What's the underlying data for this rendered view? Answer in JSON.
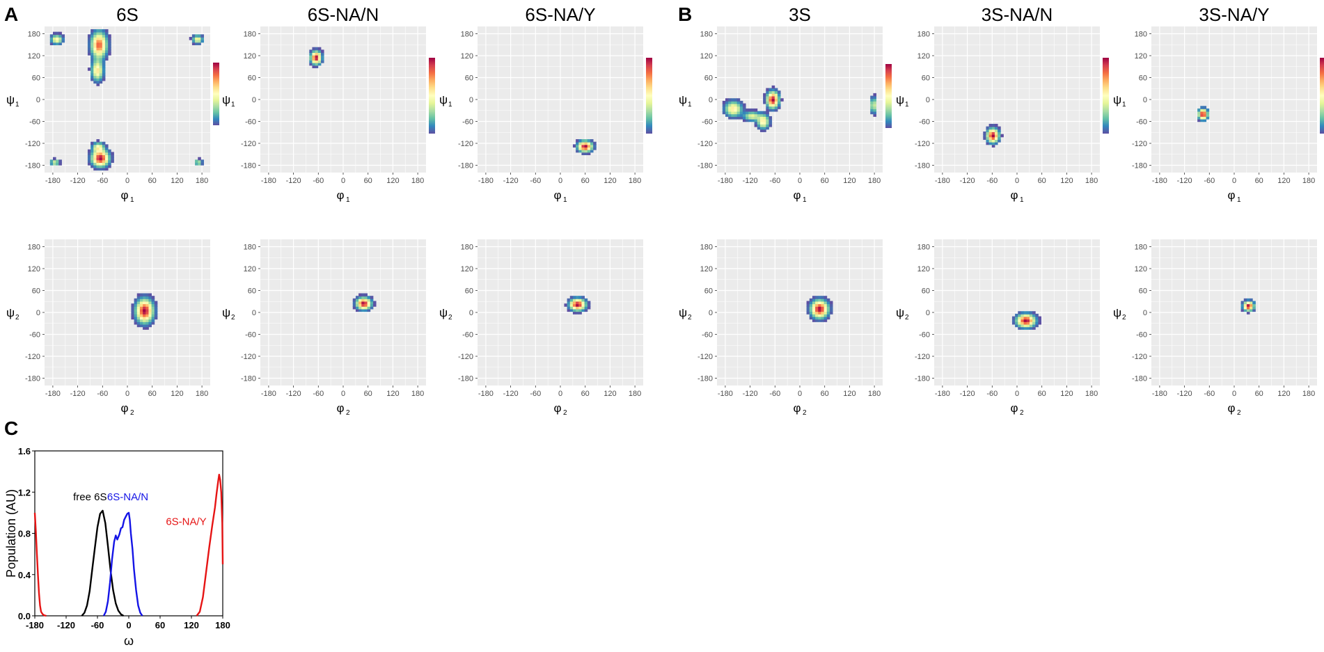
{
  "panel_labels": [
    "A",
    "B",
    "C"
  ],
  "colors": {
    "panel_bg": "#ebebeb",
    "grid": "#ffffff",
    "free6S": "#000000",
    "NA_N": "#1414e6",
    "NA_Y": "#e61414"
  },
  "colormap": [
    "#5e4fa2",
    "#3288bd",
    "#66c2a5",
    "#abdda4",
    "#e6f598",
    "#ffffbf",
    "#fee08b",
    "#fdae61",
    "#f46d43",
    "#d53e4f",
    "#9e0142"
  ],
  "chart_data": [
    {
      "type": "heatmap",
      "title": "6S",
      "xlabel": "φ",
      "xsub": "1",
      "ylabel": "ψ",
      "ysub": "1",
      "xlim": [
        -200,
        200
      ],
      "ylim": [
        -200,
        200
      ],
      "ticks": [
        "-180",
        "-120",
        "-60",
        "0",
        "60",
        "120",
        "180"
      ],
      "colorbar": true,
      "clusters": [
        {
          "x": -68,
          "y": 150,
          "sx": 12,
          "sy": 22,
          "peak": 0.85
        },
        {
          "x": -72,
          "y": 80,
          "sx": 9,
          "sy": 18,
          "peak": 0.6
        },
        {
          "x": -170,
          "y": 165,
          "sx": 9,
          "sy": 8,
          "peak": 0.55
        },
        {
          "x": 170,
          "y": 165,
          "sx": 8,
          "sy": 7,
          "peak": 0.5
        },
        {
          "x": -65,
          "y": -160,
          "sx": 13,
          "sy": 14,
          "peak": 1.0
        },
        {
          "x": -70,
          "y": -130,
          "sx": 9,
          "sy": 8,
          "peak": 0.5
        },
        {
          "x": -175,
          "y": -172,
          "sx": 7,
          "sy": 5,
          "peak": 0.45
        },
        {
          "x": 172,
          "y": -172,
          "sx": 6,
          "sy": 5,
          "peak": 0.4
        }
      ]
    },
    {
      "type": "heatmap",
      "title": "6S-NA/N",
      "xlabel": "φ",
      "xsub": "1",
      "ylabel": "ψ",
      "ysub": "1",
      "xlim": [
        -200,
        200
      ],
      "ylim": [
        -200,
        200
      ],
      "ticks": [
        "-180",
        "-120",
        "-60",
        "0",
        "60",
        "120",
        "180"
      ],
      "colorbar": true,
      "clusters": [
        {
          "x": -65,
          "y": 115,
          "sx": 8,
          "sy": 11,
          "peak": 1.0
        }
      ]
    },
    {
      "type": "heatmap",
      "title": "6S-NA/Y",
      "xlabel": "φ",
      "xsub": "1",
      "ylabel": "ψ",
      "ysub": "1",
      "xlim": [
        -200,
        200
      ],
      "ylim": [
        -200,
        200
      ],
      "ticks": [
        "-180",
        "-120",
        "-60",
        "0",
        "60",
        "120",
        "180"
      ],
      "colorbar": true,
      "clusters": [
        {
          "x": 60,
          "y": -128,
          "sx": 11,
          "sy": 9,
          "peak": 1.0
        }
      ]
    },
    {
      "type": "heatmap",
      "title": "3S",
      "xlabel": "φ",
      "xsub": "1",
      "ylabel": "ψ",
      "ysub": "1",
      "xlim": [
        -200,
        200
      ],
      "ylim": [
        -200,
        200
      ],
      "ticks": [
        "-180",
        "-120",
        "-60",
        "0",
        "60",
        "120",
        "180"
      ],
      "colorbar": true,
      "clusters": [
        {
          "x": -65,
          "y": 0,
          "sx": 9,
          "sy": 14,
          "peak": 1.0
        },
        {
          "x": -160,
          "y": -25,
          "sx": 13,
          "sy": 13,
          "peak": 0.6
        },
        {
          "x": -115,
          "y": -45,
          "sx": 13,
          "sy": 8,
          "peak": 0.45
        },
        {
          "x": -88,
          "y": -60,
          "sx": 9,
          "sy": 12,
          "peak": 0.6
        },
        {
          "x": 178,
          "y": -15,
          "sx": 4,
          "sy": 14,
          "peak": 0.5
        }
      ]
    },
    {
      "type": "heatmap",
      "title": "3S-NA/N",
      "xlabel": "φ",
      "xsub": "1",
      "ylabel": "ψ",
      "ysub": "1",
      "xlim": [
        -200,
        200
      ],
      "ylim": [
        -200,
        200
      ],
      "ticks": [
        "-180",
        "-120",
        "-60",
        "0",
        "60",
        "120",
        "180"
      ],
      "colorbar": true,
      "clusters": [
        {
          "x": -58,
          "y": -98,
          "sx": 9,
          "sy": 12,
          "peak": 1.0
        }
      ]
    },
    {
      "type": "heatmap",
      "title": "3S-NA/Y",
      "xlabel": "φ",
      "xsub": "1",
      "ylabel": "ψ",
      "ysub": "1",
      "xlim": [
        -200,
        200
      ],
      "ylim": [
        -200,
        200
      ],
      "ticks": [
        "-180",
        "-120",
        "-60",
        "0",
        "60",
        "120",
        "180"
      ],
      "colorbar": true,
      "clusters": [
        {
          "x": -75,
          "y": -40,
          "sx": 7,
          "sy": 9,
          "peak": 1.0
        }
      ]
    },
    {
      "type": "heatmap",
      "title": "",
      "xlabel": "φ",
      "xsub": "2",
      "ylabel": "ψ",
      "ysub": "2",
      "xlim": [
        -200,
        200
      ],
      "ylim": [
        -200,
        200
      ],
      "ticks": [
        "-180",
        "-120",
        "-60",
        "0",
        "60",
        "120",
        "180"
      ],
      "colorbar": false,
      "clusters": [
        {
          "x": 42,
          "y": 5,
          "sx": 13,
          "sy": 20,
          "peak": 1.0
        }
      ]
    },
    {
      "type": "heatmap",
      "title": "",
      "xlabel": "φ",
      "xsub": "2",
      "ylabel": "ψ",
      "ysub": "2",
      "xlim": [
        -200,
        200
      ],
      "ylim": [
        -200,
        200
      ],
      "ticks": [
        "-180",
        "-120",
        "-60",
        "0",
        "60",
        "120",
        "180"
      ],
      "colorbar": false,
      "clusters": [
        {
          "x": 50,
          "y": 25,
          "sx": 11,
          "sy": 10,
          "peak": 1.0
        }
      ]
    },
    {
      "type": "heatmap",
      "title": "",
      "xlabel": "φ",
      "xsub": "2",
      "ylabel": "ψ",
      "ysub": "2",
      "xlim": [
        -200,
        200
      ],
      "ylim": [
        -200,
        200
      ],
      "ticks": [
        "-180",
        "-120",
        "-60",
        "0",
        "60",
        "120",
        "180"
      ],
      "colorbar": false,
      "clusters": [
        {
          "x": 42,
          "y": 22,
          "sx": 12,
          "sy": 10,
          "peak": 1.0
        }
      ]
    },
    {
      "type": "heatmap",
      "title": "",
      "xlabel": "φ",
      "xsub": "2",
      "ylabel": "ψ",
      "ysub": "2",
      "xlim": [
        -200,
        200
      ],
      "ylim": [
        -200,
        200
      ],
      "ticks": [
        "-180",
        "-120",
        "-60",
        "0",
        "60",
        "120",
        "180"
      ],
      "colorbar": false,
      "clusters": [
        {
          "x": 48,
          "y": 10,
          "sx": 13,
          "sy": 15,
          "peak": 1.0
        }
      ]
    },
    {
      "type": "heatmap",
      "title": "",
      "xlabel": "φ",
      "xsub": "2",
      "ylabel": "ψ",
      "ysub": "2",
      "xlim": [
        -200,
        200
      ],
      "ylim": [
        -200,
        200
      ],
      "ticks": [
        "-180",
        "-120",
        "-60",
        "0",
        "60",
        "120",
        "180"
      ],
      "colorbar": false,
      "clusters": [
        {
          "x": 22,
          "y": -22,
          "sx": 14,
          "sy": 11,
          "peak": 1.0
        }
      ]
    },
    {
      "type": "heatmap",
      "title": "",
      "xlabel": "φ",
      "xsub": "2",
      "ylabel": "ψ",
      "ysub": "2",
      "xlim": [
        -200,
        200
      ],
      "ylim": [
        -200,
        200
      ],
      "ticks": [
        "-180",
        "-120",
        "-60",
        "0",
        "60",
        "120",
        "180"
      ],
      "colorbar": false,
      "clusters": [
        {
          "x": 35,
          "y": 18,
          "sx": 8,
          "sy": 8,
          "peak": 1.0
        }
      ]
    },
    {
      "type": "line",
      "title": "",
      "xlabel": "ω",
      "ylabel": "Population (AU)",
      "xlim": [
        -180,
        180
      ],
      "ylim": [
        0,
        1.6
      ],
      "xticks": [
        "-180",
        "-120",
        "-60",
        "0",
        "60",
        "120",
        "180"
      ],
      "yticks": [
        "0.0",
        "0.4",
        "0.8",
        "1.2",
        "1.6"
      ],
      "series": [
        {
          "name": "free 6S",
          "color": "#000000",
          "x": [
            -90,
            -85,
            -80,
            -75,
            -70,
            -65,
            -60,
            -55,
            -50,
            -45,
            -40,
            -35,
            -30,
            -25,
            -20,
            -15,
            -10
          ],
          "y": [
            0,
            0.03,
            0.1,
            0.24,
            0.45,
            0.66,
            0.86,
            0.99,
            1.02,
            0.9,
            0.68,
            0.44,
            0.25,
            0.12,
            0.05,
            0.015,
            0
          ]
        },
        {
          "name": "6S-NA/N",
          "color": "#1414e6",
          "x": [
            -48,
            -44,
            -40,
            -36,
            -32,
            -28,
            -25,
            -22,
            -18,
            -15,
            -12,
            -9,
            -6,
            -3,
            0,
            2,
            4,
            7,
            10,
            14,
            18,
            22,
            26
          ],
          "y": [
            0,
            0.04,
            0.14,
            0.32,
            0.55,
            0.72,
            0.78,
            0.74,
            0.79,
            0.85,
            0.86,
            0.93,
            0.96,
            0.99,
            1.0,
            0.93,
            0.8,
            0.65,
            0.45,
            0.25,
            0.1,
            0.03,
            0
          ]
        },
        {
          "name": "6S-NA/Y",
          "color": "#e61414",
          "x": [
            130,
            136,
            142,
            148,
            154,
            160,
            165,
            168,
            171,
            173,
            175,
            177,
            179,
            180
          ],
          "y": [
            0,
            0.04,
            0.18,
            0.42,
            0.66,
            0.88,
            1.05,
            1.18,
            1.3,
            1.37,
            1.32,
            1.2,
            0.9,
            0.5
          ],
          "x2": [
            -180,
            -178,
            -176,
            -174,
            -172,
            -170,
            -168,
            -165,
            -162,
            -158
          ],
          "y2": [
            1.0,
            0.82,
            0.6,
            0.4,
            0.22,
            0.1,
            0.04,
            0.015,
            0.005,
            0
          ]
        }
      ],
      "legend_labels": [
        "free 6S",
        "6S-NA/N",
        "6S-NA/Y"
      ]
    }
  ]
}
